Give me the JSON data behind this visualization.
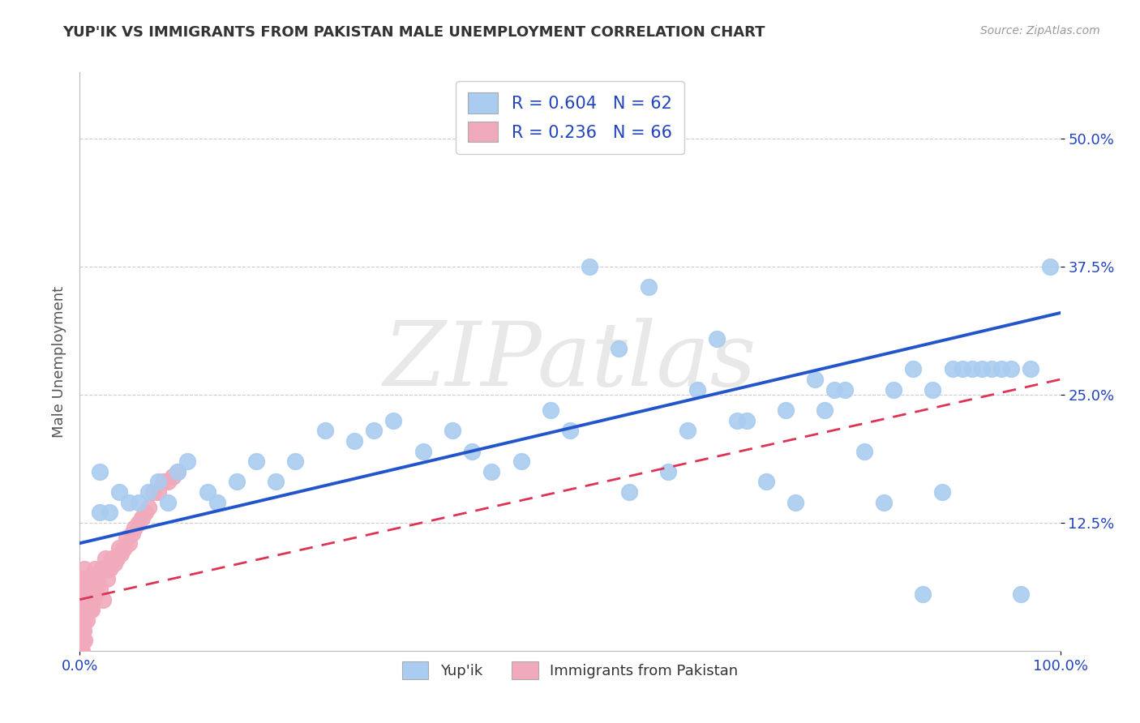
{
  "title": "YUP'IK VS IMMIGRANTS FROM PAKISTAN MALE UNEMPLOYMENT CORRELATION CHART",
  "source": "Source: ZipAtlas.com",
  "ylabel": "Male Unemployment",
  "legend_labels": [
    "Yup'ik",
    "Immigrants from Pakistan"
  ],
  "r_yupik": 0.604,
  "n_yupik": 62,
  "r_pakistan": 0.236,
  "n_pakistan": 66,
  "yupik_color": "#aaccf0",
  "pakistan_color": "#f0aabc",
  "yupik_line_color": "#2255cc",
  "pakistan_line_color": "#dd3355",
  "watermark_text": "ZIPatlas",
  "xlim": [
    0.0,
    1.0
  ],
  "ylim": [
    0.0,
    0.565
  ],
  "ytick_vals": [
    0.125,
    0.25,
    0.375,
    0.5
  ],
  "ytick_labels": [
    "12.5%",
    "25.0%",
    "37.5%",
    "50.0%"
  ],
  "xtick_vals": [
    0.0,
    1.0
  ],
  "xtick_labels": [
    "0.0%",
    "100.0%"
  ],
  "yupik_x": [
    0.02,
    0.02,
    0.03,
    0.04,
    0.05,
    0.06,
    0.07,
    0.08,
    0.09,
    0.1,
    0.11,
    0.13,
    0.14,
    0.16,
    0.18,
    0.2,
    0.22,
    0.25,
    0.28,
    0.3,
    0.32,
    0.35,
    0.38,
    0.4,
    0.42,
    0.45,
    0.48,
    0.5,
    0.52,
    0.55,
    0.56,
    0.58,
    0.6,
    0.62,
    0.63,
    0.65,
    0.67,
    0.68,
    0.7,
    0.72,
    0.73,
    0.75,
    0.76,
    0.77,
    0.78,
    0.8,
    0.82,
    0.83,
    0.85,
    0.86,
    0.87,
    0.88,
    0.89,
    0.9,
    0.91,
    0.92,
    0.93,
    0.94,
    0.95,
    0.96,
    0.97,
    0.99
  ],
  "yupik_y": [
    0.175,
    0.135,
    0.135,
    0.155,
    0.145,
    0.145,
    0.155,
    0.165,
    0.145,
    0.175,
    0.185,
    0.155,
    0.145,
    0.165,
    0.185,
    0.165,
    0.185,
    0.215,
    0.205,
    0.215,
    0.225,
    0.195,
    0.215,
    0.195,
    0.175,
    0.185,
    0.235,
    0.215,
    0.375,
    0.295,
    0.155,
    0.355,
    0.175,
    0.215,
    0.255,
    0.305,
    0.225,
    0.225,
    0.165,
    0.235,
    0.145,
    0.265,
    0.235,
    0.255,
    0.255,
    0.195,
    0.145,
    0.255,
    0.275,
    0.055,
    0.255,
    0.155,
    0.275,
    0.275,
    0.275,
    0.275,
    0.275,
    0.275,
    0.275,
    0.055,
    0.275,
    0.375
  ],
  "pakistan_x": [
    0.001,
    0.001,
    0.001,
    0.001,
    0.002,
    0.002,
    0.002,
    0.002,
    0.002,
    0.002,
    0.002,
    0.002,
    0.003,
    0.003,
    0.003,
    0.003,
    0.004,
    0.004,
    0.004,
    0.004,
    0.005,
    0.005,
    0.005,
    0.005,
    0.005,
    0.006,
    0.006,
    0.007,
    0.007,
    0.008,
    0.008,
    0.009,
    0.01,
    0.011,
    0.012,
    0.013,
    0.014,
    0.015,
    0.016,
    0.018,
    0.02,
    0.022,
    0.024,
    0.026,
    0.028,
    0.03,
    0.033,
    0.035,
    0.038,
    0.04,
    0.042,
    0.045,
    0.048,
    0.05,
    0.053,
    0.056,
    0.06,
    0.063,
    0.067,
    0.07,
    0.075,
    0.08,
    0.085,
    0.09,
    0.095,
    0.1
  ],
  "pakistan_y": [
    0.0,
    0.0,
    0.02,
    0.03,
    0.0,
    0.01,
    0.02,
    0.03,
    0.04,
    0.05,
    0.06,
    0.07,
    0.01,
    0.02,
    0.04,
    0.06,
    0.02,
    0.03,
    0.05,
    0.07,
    0.01,
    0.03,
    0.05,
    0.06,
    0.08,
    0.04,
    0.07,
    0.03,
    0.06,
    0.04,
    0.07,
    0.05,
    0.04,
    0.06,
    0.04,
    0.07,
    0.05,
    0.08,
    0.06,
    0.07,
    0.06,
    0.08,
    0.05,
    0.09,
    0.07,
    0.08,
    0.09,
    0.085,
    0.09,
    0.1,
    0.095,
    0.1,
    0.11,
    0.105,
    0.115,
    0.12,
    0.125,
    0.13,
    0.135,
    0.14,
    0.155,
    0.155,
    0.165,
    0.165,
    0.17,
    0.175
  ],
  "background_color": "#ffffff",
  "grid_color": "#cccccc",
  "yupik_line_x0": 0.0,
  "yupik_line_x1": 1.0,
  "yupik_line_y0": 0.105,
  "yupik_line_y1": 0.33,
  "pakistan_line_x0": 0.0,
  "pakistan_line_x1": 1.0,
  "pakistan_line_y0": 0.05,
  "pakistan_line_y1": 0.265
}
